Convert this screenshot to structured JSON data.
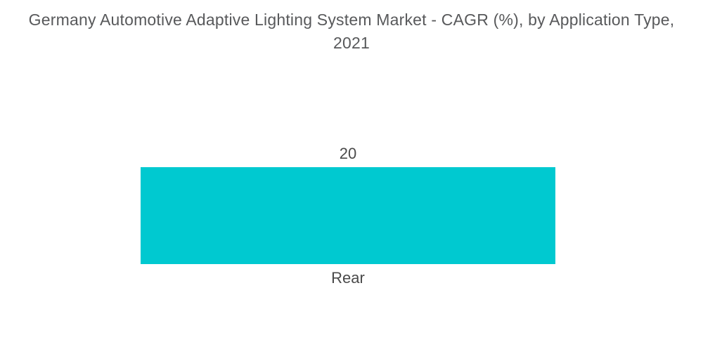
{
  "header": {
    "title_line1": "Germany Automotive Adaptive Lighting System Market - CAGR (%), by Application Type,",
    "title_line2": "2021"
  },
  "chart_data": {
    "type": "bar",
    "orientation": "vertical",
    "title": "Germany Automotive Adaptive Lighting System Market - CAGR (%), by Application Type, 2021",
    "categories": [
      "Rear"
    ],
    "values": [
      20
    ],
    "value_labels": [
      "20"
    ],
    "xlabel": "",
    "ylabel": "CAGR (%)",
    "ylim": [
      0,
      20
    ],
    "grid": false,
    "legend": false,
    "axes_visible": false,
    "colors": {
      "bar": "#00c9d0",
      "title_text": "#58595b",
      "label_text": "#4a4a4a",
      "background": "#ffffff"
    }
  }
}
